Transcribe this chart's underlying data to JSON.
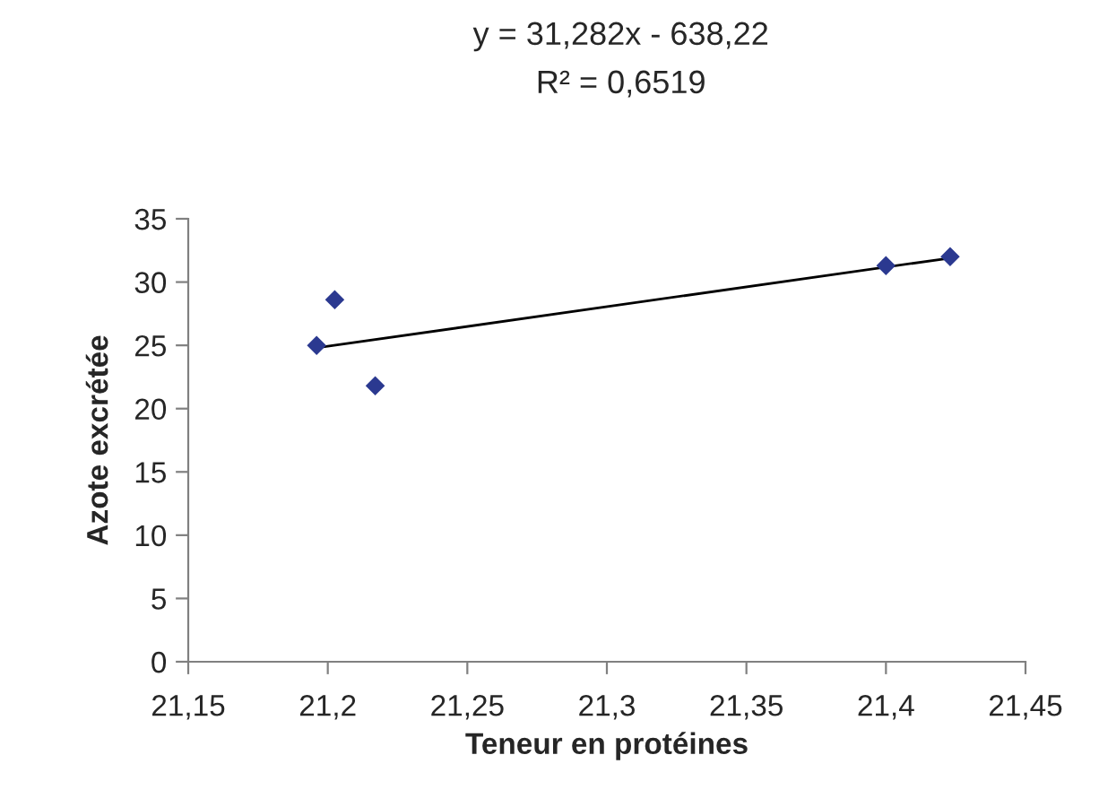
{
  "chart_data": {
    "type": "scatter",
    "xlabel": "Teneur en protéines",
    "ylabel": "Azote excrétée",
    "annotations": [
      "y = 31,282x - 638,22",
      "R² = 0,6519"
    ],
    "series": [
      {
        "color": "#2b3990",
        "marker": "diamond",
        "x": [
          21.196,
          21.2025,
          21.217,
          21.4,
          21.423
        ],
        "values": [
          25,
          28.6,
          21.8,
          31.3,
          32.0
        ]
      },
      {
        "type": "line",
        "color": "#000000",
        "marker": "none",
        "line_style": "solid",
        "x": [
          21.196,
          21.423
        ],
        "values": [
          24.8,
          31.9
        ]
      }
    ],
    "xlim": [
      21.15,
      21.45
    ],
    "xticks": [
      {
        "value": 21.15,
        "label": "21,15"
      },
      {
        "value": 21.2,
        "label": "21,2"
      },
      {
        "value": 21.25,
        "label": "21,25"
      },
      {
        "value": 21.3,
        "label": "21,3"
      },
      {
        "value": 21.35,
        "label": "21,35"
      },
      {
        "value": 21.4,
        "label": "21,4"
      },
      {
        "value": 21.45,
        "label": "21,45"
      }
    ],
    "ylim": [
      0,
      35
    ],
    "yticks": [
      0,
      5,
      10,
      15,
      20,
      25,
      30,
      35
    ],
    "grid": false,
    "legend": false
  }
}
